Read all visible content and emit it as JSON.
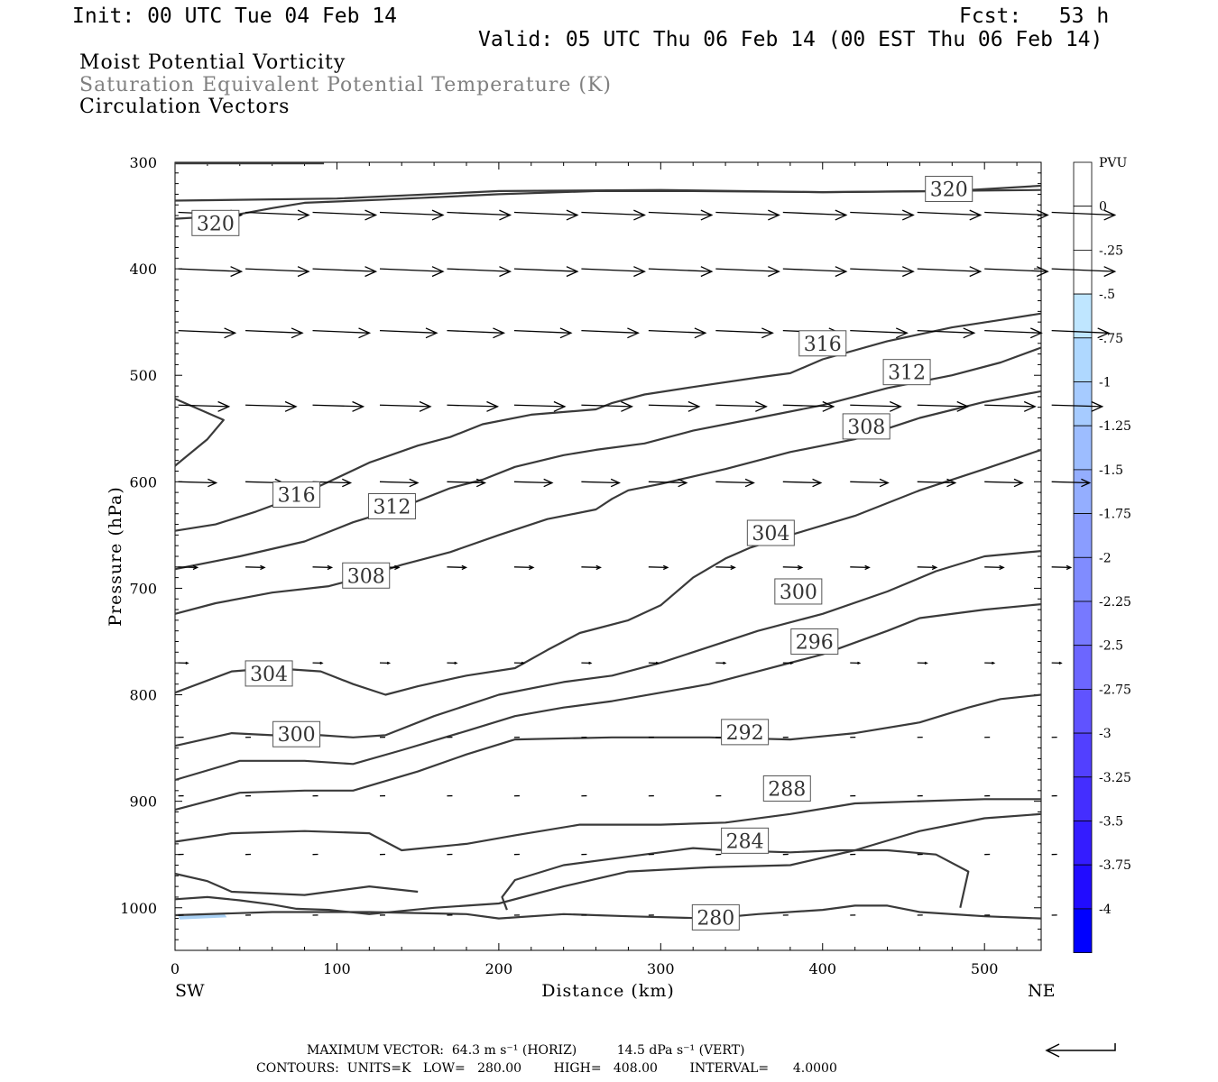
{
  "header": {
    "init": "Init: 00 UTC Tue 04 Feb 14",
    "fcst": "Fcst:   53 h",
    "valid": "Valid: 05 UTC Thu 06 Feb 14 (00 EST Thu 06 Feb 14)"
  },
  "fields": {
    "line1": "Moist Potential Vorticity",
    "line2": "Saturation Equivalent Potential Temperature (K)",
    "line3": "Circulation Vectors"
  },
  "chart_data": {
    "type": "cross-section contour",
    "xlabel": "Distance (km)",
    "ylabel": "Pressure (hPa)",
    "x_range": [
      0,
      535
    ],
    "y_range": [
      1040,
      300
    ],
    "x_ticks": [
      0,
      100,
      200,
      300,
      400,
      500
    ],
    "y_ticks": [
      300,
      400,
      500,
      600,
      700,
      800,
      900,
      1000
    ],
    "x_end_labels": {
      "left": "SW",
      "right": "NE"
    },
    "colorbar": {
      "unit": "PVU",
      "labels": [
        "0",
        "-.25",
        "-.5",
        "-.75",
        "-1",
        "-1.25",
        "-1.5",
        "-1.75",
        "-2",
        "-2.25",
        "-2.5",
        "-2.75",
        "-3",
        "-3.25",
        "-3.5",
        "-3.75",
        "-4"
      ],
      "colors": [
        "#ffffff",
        "#ffffff",
        "#bfe6ff",
        "#afd8ff",
        "#a6cbff",
        "#9dbdff",
        "#94aeff",
        "#8a9dff",
        "#808cff",
        "#7779ff",
        "#6c66ff",
        "#6053ff",
        "#5240ff",
        "#442eff",
        "#341cff",
        "#210cff",
        "#0000ff"
      ]
    },
    "contours": [
      {
        "label": "320",
        "pts": [
          [
            0,
            336
          ],
          [
            100,
            334
          ],
          [
            200,
            327
          ],
          [
            300,
            326
          ],
          [
            400,
            328
          ],
          [
            480,
            327
          ],
          [
            535,
            322
          ]
        ]
      },
      {
        "label": "316",
        "pts": [
          [
            0,
            353
          ],
          [
            35,
            350
          ],
          [
            60,
            343
          ],
          [
            80,
            338
          ],
          [
            130,
            335
          ],
          [
            200,
            330
          ],
          [
            260,
            327
          ],
          [
            320,
            327
          ],
          [
            400,
            328
          ],
          [
            535,
            326
          ]
        ]
      },
      {
        "label": "316",
        "pts": [
          [
            0,
            646
          ],
          [
            25,
            640
          ],
          [
            50,
            628
          ],
          [
            75,
            614
          ],
          [
            95,
            600
          ],
          [
            120,
            582
          ],
          [
            150,
            566
          ],
          [
            170,
            558
          ],
          [
            190,
            546
          ],
          [
            220,
            537
          ],
          [
            260,
            532
          ],
          [
            270,
            526
          ],
          [
            290,
            518
          ],
          [
            320,
            511
          ],
          [
            360,
            502
          ],
          [
            380,
            498
          ],
          [
            400,
            485
          ],
          [
            440,
            468
          ],
          [
            480,
            455
          ],
          [
            510,
            448
          ],
          [
            535,
            442
          ]
        ]
      },
      {
        "label": "312",
        "pts": [
          [
            0,
            682
          ],
          [
            40,
            670
          ],
          [
            80,
            656
          ],
          [
            110,
            638
          ],
          [
            140,
            624
          ],
          [
            170,
            606
          ],
          [
            190,
            598
          ],
          [
            210,
            586
          ],
          [
            240,
            575
          ],
          [
            260,
            570
          ],
          [
            290,
            564
          ],
          [
            320,
            552
          ],
          [
            360,
            540
          ],
          [
            400,
            528
          ],
          [
            440,
            512
          ],
          [
            480,
            500
          ],
          [
            510,
            488
          ],
          [
            535,
            474
          ]
        ]
      },
      {
        "label": "308",
        "pts": [
          [
            0,
            724
          ],
          [
            25,
            714
          ],
          [
            60,
            704
          ],
          [
            95,
            698
          ],
          [
            115,
            690
          ],
          [
            140,
            678
          ],
          [
            170,
            666
          ],
          [
            200,
            650
          ],
          [
            230,
            635
          ],
          [
            260,
            626
          ],
          [
            270,
            616
          ],
          [
            280,
            608
          ],
          [
            300,
            602
          ],
          [
            340,
            588
          ],
          [
            380,
            572
          ],
          [
            420,
            560
          ],
          [
            460,
            540
          ],
          [
            500,
            525
          ],
          [
            535,
            515
          ]
        ]
      },
      {
        "label": "304",
        "pts": [
          [
            0,
            798
          ],
          [
            35,
            778
          ],
          [
            60,
            775
          ],
          [
            90,
            778
          ],
          [
            110,
            790
          ],
          [
            130,
            800
          ],
          [
            150,
            792
          ],
          [
            180,
            782
          ],
          [
            210,
            775
          ],
          [
            230,
            758
          ],
          [
            250,
            742
          ],
          [
            280,
            730
          ],
          [
            300,
            716
          ],
          [
            320,
            690
          ],
          [
            340,
            672
          ],
          [
            355,
            662
          ],
          [
            380,
            650
          ],
          [
            420,
            632
          ],
          [
            460,
            608
          ],
          [
            500,
            588
          ],
          [
            535,
            570
          ]
        ]
      },
      {
        "label": "300",
        "pts": [
          [
            0,
            848
          ],
          [
            35,
            836
          ],
          [
            60,
            838
          ],
          [
            90,
            838
          ],
          [
            110,
            840
          ],
          [
            130,
            838
          ],
          [
            160,
            820
          ],
          [
            200,
            800
          ],
          [
            240,
            788
          ],
          [
            270,
            782
          ],
          [
            300,
            770
          ],
          [
            330,
            755
          ],
          [
            360,
            740
          ],
          [
            400,
            724
          ],
          [
            440,
            703
          ],
          [
            470,
            684
          ],
          [
            500,
            670
          ],
          [
            535,
            665
          ]
        ]
      },
      {
        "label": "296",
        "pts": [
          [
            0,
            880
          ],
          [
            40,
            862
          ],
          [
            80,
            862
          ],
          [
            110,
            865
          ],
          [
            140,
            852
          ],
          [
            180,
            834
          ],
          [
            210,
            820
          ],
          [
            240,
            812
          ],
          [
            270,
            806
          ],
          [
            300,
            798
          ],
          [
            330,
            790
          ],
          [
            360,
            778
          ],
          [
            400,
            762
          ],
          [
            440,
            740
          ],
          [
            460,
            728
          ],
          [
            500,
            720
          ],
          [
            535,
            715
          ]
        ]
      },
      {
        "label": "292",
        "pts": [
          [
            0,
            908
          ],
          [
            40,
            892
          ],
          [
            80,
            890
          ],
          [
            110,
            890
          ],
          [
            150,
            872
          ],
          [
            180,
            856
          ],
          [
            210,
            842
          ],
          [
            270,
            840
          ],
          [
            330,
            840
          ],
          [
            380,
            842
          ],
          [
            420,
            836
          ],
          [
            460,
            826
          ],
          [
            490,
            812
          ],
          [
            510,
            804
          ],
          [
            535,
            800
          ]
        ]
      },
      {
        "label": "288",
        "pts": [
          [
            0,
            938
          ],
          [
            35,
            930
          ],
          [
            80,
            928
          ],
          [
            120,
            930
          ],
          [
            140,
            946
          ],
          [
            180,
            940
          ],
          [
            210,
            932
          ],
          [
            250,
            922
          ],
          [
            300,
            922
          ],
          [
            340,
            920
          ],
          [
            380,
            912
          ],
          [
            420,
            902
          ],
          [
            460,
            900
          ],
          [
            500,
            898
          ],
          [
            535,
            898
          ]
        ]
      },
      {
        "label": "284",
        "pts": [
          [
            0,
            992
          ],
          [
            20,
            990
          ],
          [
            40,
            993
          ],
          [
            60,
            997
          ],
          [
            75,
            1001
          ],
          [
            95,
            1002
          ],
          [
            120,
            1006
          ],
          [
            160,
            1000
          ],
          [
            200,
            996
          ],
          [
            240,
            980
          ],
          [
            280,
            966
          ],
          [
            330,
            962
          ],
          [
            380,
            960
          ],
          [
            420,
            946
          ],
          [
            460,
            928
          ],
          [
            500,
            916
          ],
          [
            535,
            912
          ]
        ]
      },
      {
        "label": "280",
        "pts": [
          [
            0,
            1007
          ],
          [
            60,
            1004
          ],
          [
            120,
            1004
          ],
          [
            180,
            1006
          ],
          [
            200,
            1010
          ],
          [
            240,
            1006
          ],
          [
            280,
            1008
          ],
          [
            330,
            1010
          ],
          [
            360,
            1006
          ],
          [
            400,
            1002
          ],
          [
            420,
            998
          ],
          [
            440,
            998
          ],
          [
            460,
            1004
          ],
          [
            500,
            1008
          ],
          [
            535,
            1010
          ]
        ]
      },
      {
        "label": "",
        "pts": [
          [
            0,
            968
          ],
          [
            20,
            975
          ],
          [
            35,
            985
          ],
          [
            80,
            988
          ],
          [
            120,
            980
          ],
          [
            150,
            985
          ]
        ]
      },
      {
        "label": "",
        "pts": [
          [
            205,
            1002
          ],
          [
            202,
            990
          ],
          [
            210,
            974
          ],
          [
            240,
            960
          ],
          [
            300,
            948
          ],
          [
            320,
            944
          ],
          [
            340,
            946
          ],
          [
            380,
            948
          ],
          [
            410,
            946
          ],
          [
            440,
            946
          ],
          [
            470,
            950
          ],
          [
            490,
            966
          ],
          [
            485,
            1000
          ]
        ]
      },
      {
        "label": "",
        "pts": [
          [
            0,
            522
          ],
          [
            30,
            542
          ],
          [
            20,
            560
          ],
          [
            0,
            585
          ]
        ]
      }
    ],
    "vectors": {
      "note": "circulation vectors (u along section, omega)",
      "max_horiz": "64.3 m s",
      "max_vert": "14.5 dPa s",
      "rows": [
        {
          "p": 347,
          "mags": [
            1,
            1,
            1,
            1,
            1,
            1,
            1,
            1,
            1,
            1,
            1,
            1,
            1,
            1,
            1,
            1,
            1,
            1,
            1,
            1
          ]
        },
        {
          "p": 400,
          "mags": [
            1,
            1,
            1,
            1,
            1,
            1,
            1,
            1,
            1,
            1,
            1,
            1,
            1,
            1,
            1,
            1,
            1,
            1,
            1,
            1
          ]
        },
        {
          "p": 458,
          "mags": [
            0.9,
            0.9,
            0.9,
            0.9,
            0.9,
            0.9,
            0.9,
            0.9,
            0.9,
            0.9,
            0.9,
            0.9,
            0.9,
            0.9,
            0.9,
            0.9,
            0.9,
            0.9,
            0.9,
            0.9
          ]
        },
        {
          "p": 528,
          "mags": [
            0.8,
            0.8,
            0.8,
            0.8,
            0.8,
            0.8,
            0.8,
            0.8,
            0.8,
            0.8,
            0.8,
            0.8,
            0.8,
            0.8,
            0.8,
            0.8,
            0.8,
            0.8,
            0.8,
            0.8
          ]
        },
        {
          "p": 600,
          "mags": [
            0.6,
            0.6,
            0.6,
            0.6,
            0.6,
            0.6,
            0.6,
            0.6,
            0.6,
            0.6,
            0.6,
            0.6,
            0.6,
            0.6,
            0.6,
            0.6,
            0.6,
            0.6,
            0.6,
            0.6
          ]
        },
        {
          "p": 680,
          "mags": [
            0.3,
            0.3,
            0.3,
            0.3,
            0.3,
            0.3,
            0.3,
            0.3,
            0.3,
            0.3,
            0.3,
            0.3,
            0.3,
            0.3,
            0.3,
            0.3,
            0.3,
            0.3,
            0.3,
            0.3
          ]
        },
        {
          "p": 770,
          "mags": [
            0.15,
            0.15,
            0.15,
            0.15,
            0.15,
            0.15,
            0.15,
            0.15,
            0.15,
            0.15,
            0.15,
            0.15,
            0.15,
            0.15,
            0.15,
            0.15,
            0.15,
            0.15,
            0.15,
            0.15
          ]
        },
        {
          "p": 840,
          "mags": [
            0.08,
            0.08,
            0.08,
            0.08,
            0.08,
            0.08,
            0.08,
            0.08,
            0.08,
            0.08,
            0.08,
            0.08,
            0.08,
            0.08,
            0.08,
            0.08,
            0.08,
            0.08,
            0.08,
            0.08
          ]
        },
        {
          "p": 895,
          "mags": [
            0.05,
            0.05,
            0.05,
            0.05,
            0.05,
            0.05,
            0.05,
            0.05,
            0.05,
            0.05,
            0.05,
            0.05,
            0.05,
            0.05,
            0.05,
            0.05,
            0.05,
            0.05,
            0.05,
            0.05
          ]
        },
        {
          "p": 950,
          "mags": [
            0.05,
            0.05,
            0.05,
            0.05,
            0.05,
            0.05,
            0.05,
            0.05,
            0.05,
            0.05,
            0.05,
            0.05,
            0.05,
            0.05,
            0.05,
            0.05,
            0.05,
            0.05,
            0.05,
            0.05
          ]
        },
        {
          "p": 1007,
          "mags": [
            0.05,
            0.05,
            0.05,
            0.05,
            0.05,
            0.05,
            0.05,
            0.05,
            0.05,
            0.05,
            0.05,
            0.05,
            0.05,
            0.05,
            0.05,
            0.05,
            0.05,
            0.05,
            0.05,
            0.05
          ]
        }
      ]
    }
  },
  "footer": {
    "max_vector": "MAXIMUM VECTOR:  64.3 m s⁻¹ (HORIZ)          14.5 dPa s⁻¹ (VERT)",
    "contours": "CONTOURS:  UNITS=K   LOW=   280.00        HIGH=   408.00        INTERVAL=      4.0000"
  }
}
